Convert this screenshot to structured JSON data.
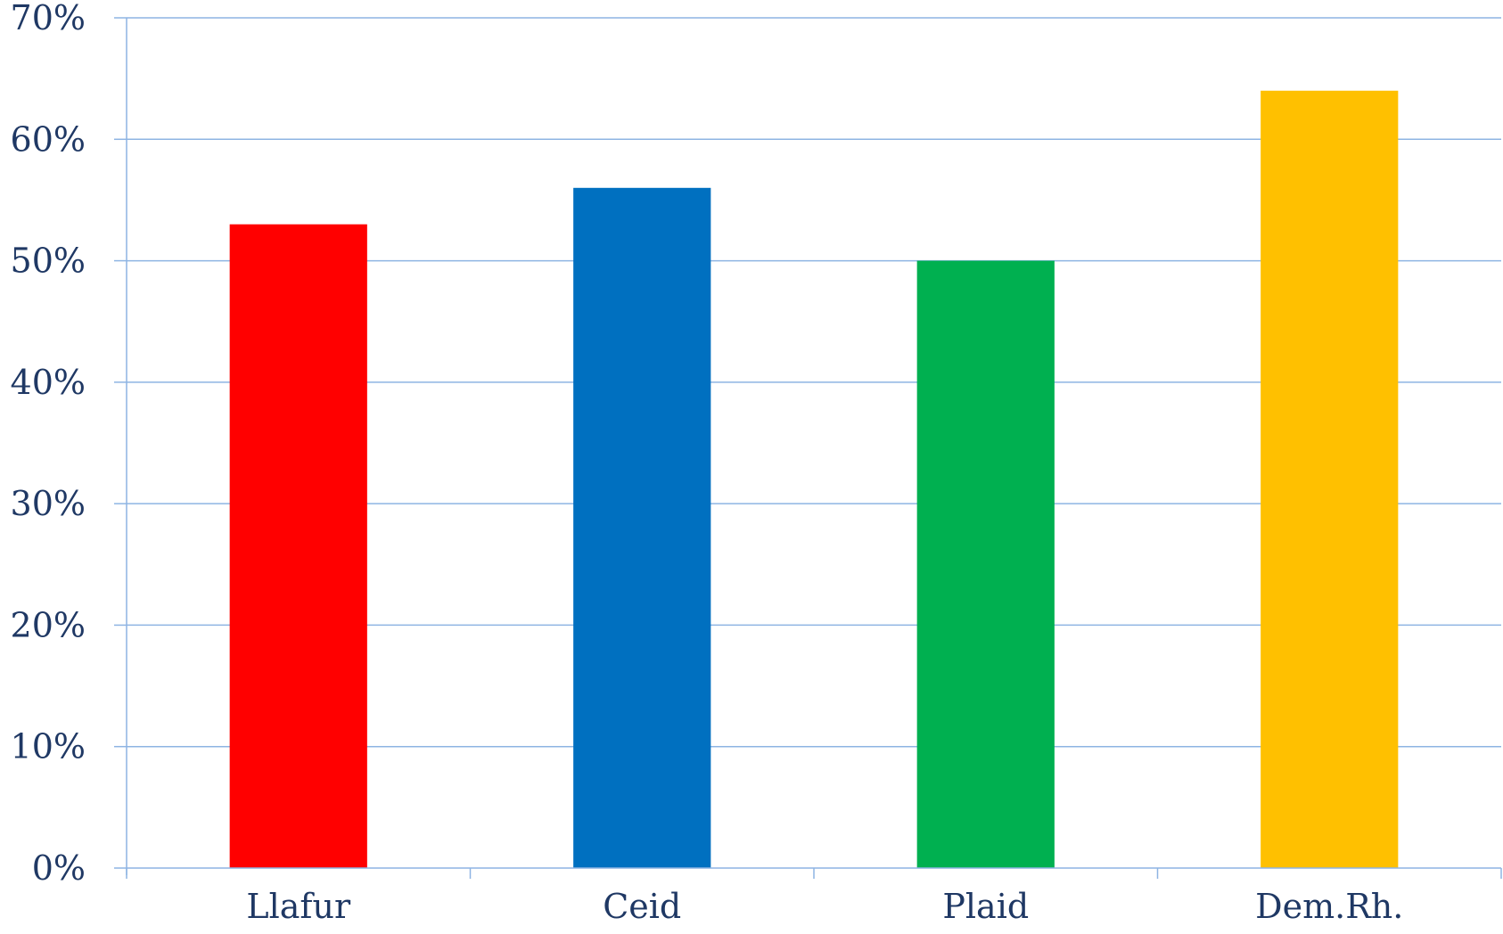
{
  "chart_data": {
    "type": "bar",
    "categories": [
      "Llafur",
      "Ceid",
      "Plaid",
      "Dem.Rh."
    ],
    "values": [
      53,
      56,
      50,
      64
    ],
    "colors": [
      "#ff0000",
      "#0070c0",
      "#00b050",
      "#ffc000"
    ],
    "ylim": [
      0,
      70
    ],
    "yticks": [
      0,
      10,
      20,
      30,
      40,
      50,
      60,
      70
    ],
    "ytick_labels": [
      "0%",
      "10%",
      "20%",
      "30%",
      "40%",
      "50%",
      "60%",
      "70%"
    ],
    "grid": true,
    "grid_color": "#8eb4e3",
    "axis_color": "#8eb4e3",
    "text_color": "#1f3864",
    "title": "",
    "xlabel": "",
    "ylabel": "",
    "legend": "none"
  }
}
